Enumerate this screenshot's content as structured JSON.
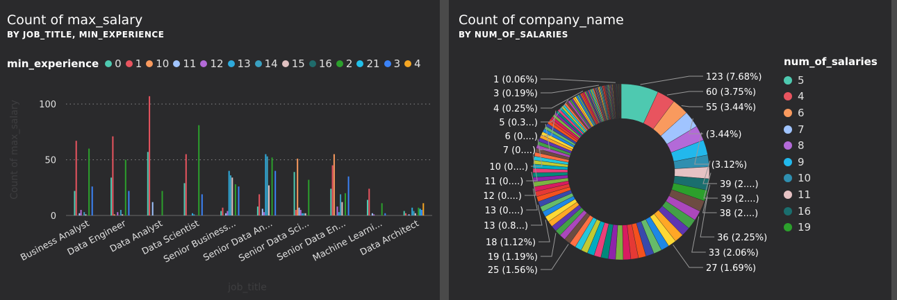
{
  "left_panel": {
    "title": "Count of max_salary",
    "subtitle": "BY JOB_TITLE, MIN_EXPERIENCE",
    "legend_title": "min_experience"
  },
  "right_panel": {
    "title": "Count of company_name",
    "subtitle": "BY NUM_OF_SALARIES",
    "legend_title": "num_of_salaries"
  },
  "chart_data": [
    {
      "type": "bar",
      "title": "Count of max_salary",
      "subtitle": "BY JOB_TITLE, MIN_EXPERIENCE",
      "xlabel": "job_title",
      "ylabel": "Count of max_salary",
      "ylim": [
        0,
        115
      ],
      "yticks": [
        0,
        50,
        100
      ],
      "grid": true,
      "legend_placement": "top",
      "categories": [
        "Business Analyst",
        "Data Engineer",
        "Data Analyst",
        "Data Scientist",
        "Senior Business...",
        "Senior Data An...",
        "Senior Data Sci...",
        "Senior Data En...",
        "Machine Learni...",
        "Data Architect"
      ],
      "series": [
        {
          "name": "0",
          "color": "#4ec9b0",
          "values": [
            22,
            34,
            57,
            29,
            4,
            8,
            39,
            24,
            14,
            4
          ]
        },
        {
          "name": "1",
          "color": "#e8545f",
          "values": [
            67,
            71,
            107,
            55,
            7,
            19,
            5,
            45,
            24,
            2
          ]
        },
        {
          "name": "10",
          "color": "#f99a5e",
          "values": [
            0,
            1,
            0,
            0,
            0,
            0,
            51,
            55,
            0,
            0
          ]
        },
        {
          "name": "11",
          "color": "#a0c4ff",
          "values": [
            2,
            0,
            12,
            0,
            2,
            6,
            7,
            0,
            2,
            1
          ]
        },
        {
          "name": "12",
          "color": "#b36ad8",
          "values": [
            5,
            3,
            0,
            0,
            4,
            3,
            5,
            8,
            1,
            0
          ]
        },
        {
          "name": "13",
          "color": "#2eaadc",
          "values": [
            0,
            0,
            0,
            2,
            40,
            55,
            2,
            3,
            0,
            7
          ]
        },
        {
          "name": "14",
          "color": "#3aa0c0",
          "values": [
            3,
            5,
            0,
            1,
            36,
            53,
            2,
            19,
            0,
            4
          ]
        },
        {
          "name": "15",
          "color": "#e0c0c0",
          "values": [
            1,
            1,
            0,
            0,
            34,
            27,
            2,
            12,
            0,
            2
          ]
        },
        {
          "name": "16",
          "color": "#1f6b6b",
          "values": [
            0,
            0,
            0,
            0,
            0,
            0,
            0,
            0,
            0,
            0
          ]
        },
        {
          "name": "2",
          "color": "#2ca02c",
          "values": [
            60,
            50,
            22,
            81,
            28,
            52,
            32,
            20,
            11,
            7
          ]
        },
        {
          "name": "21",
          "color": "#22c0ea",
          "values": [
            0,
            0,
            0,
            0,
            0,
            0,
            0,
            0,
            0,
            6
          ]
        },
        {
          "name": "3",
          "color": "#3b82f6",
          "values": [
            26,
            22,
            0,
            19,
            26,
            40,
            0,
            35,
            2,
            5
          ]
        },
        {
          "name": "4",
          "color": "#f5a623",
          "values": [
            0,
            0,
            0,
            0,
            0,
            0,
            0,
            0,
            0,
            11
          ]
        }
      ]
    },
    {
      "type": "pie",
      "donut": true,
      "title": "Count of company_name",
      "subtitle": "BY NUM_OF_SALARIES",
      "legend_placement": "right",
      "legend": [
        {
          "name": "5",
          "color": "#4ec9b0"
        },
        {
          "name": "4",
          "color": "#e8545f"
        },
        {
          "name": "6",
          "color": "#f99a5e"
        },
        {
          "name": "7",
          "color": "#a0c4ff"
        },
        {
          "name": "8",
          "color": "#b36ad8"
        },
        {
          "name": "9",
          "color": "#22b8ec"
        },
        {
          "name": "10",
          "color": "#2f8fb0"
        },
        {
          "name": "11",
          "color": "#e6c2c4"
        },
        {
          "name": "16",
          "color": "#1a6e6e"
        },
        {
          "name": "19",
          "color": "#2ca02c"
        }
      ],
      "slices": [
        123,
        60,
        55,
        55,
        50,
        50,
        39,
        39,
        38,
        36,
        36,
        33,
        33,
        30,
        30,
        27,
        27,
        27,
        27,
        25,
        25,
        25,
        25,
        24,
        24,
        23,
        23,
        22,
        22,
        21,
        21,
        20,
        20,
        19,
        19,
        19,
        18,
        18,
        18,
        17,
        17,
        16,
        16,
        15,
        15,
        14,
        14,
        13,
        13,
        13,
        13,
        12,
        12,
        12,
        11,
        11,
        11,
        10,
        10,
        10,
        9,
        9,
        9,
        8,
        8,
        8,
        8,
        7,
        7,
        7,
        7,
        7,
        6,
        6,
        6,
        6,
        6,
        5,
        5,
        5,
        5,
        5,
        5,
        4,
        4,
        4,
        4,
        4,
        4,
        4,
        4,
        3,
        3,
        3,
        3,
        3,
        3,
        3,
        3,
        3,
        3,
        2,
        2,
        2,
        2,
        2,
        2,
        2,
        2,
        2,
        2,
        2,
        2,
        2,
        2,
        1,
        1,
        1,
        1,
        1,
        1,
        1,
        1,
        1,
        1,
        1,
        1,
        1,
        1,
        1,
        1,
        1,
        1,
        1,
        1,
        1,
        1,
        1,
        1,
        1,
        1,
        1,
        1
      ],
      "data_labels": [
        {
          "text": "123 (7.68%)",
          "side": "right"
        },
        {
          "text": "60 (3.75%)",
          "side": "right"
        },
        {
          "text": "55 (3.44%)",
          "side": "right"
        },
        {
          "text": "(3.44%)",
          "side": "right"
        },
        {
          "text": "(3.12%)",
          "side": "right"
        },
        {
          "text": "39 (2....)",
          "side": "right"
        },
        {
          "text": "39 (2....)",
          "side": "right"
        },
        {
          "text": "38 (2....)",
          "side": "right"
        },
        {
          "text": "36 (2.25%)",
          "side": "right"
        },
        {
          "text": "33 (2.06%)",
          "side": "right"
        },
        {
          "text": "27 (1.69%)",
          "side": "right"
        },
        {
          "text": "25 (1.56%)",
          "side": "left"
        },
        {
          "text": "19 (1.19%)",
          "side": "left"
        },
        {
          "text": "18 (1.12%)",
          "side": "left"
        },
        {
          "text": "13 (0.8...)",
          "side": "left"
        },
        {
          "text": "13 (0....)",
          "side": "left"
        },
        {
          "text": "12 (0....)",
          "side": "left"
        },
        {
          "text": "11 (0....)",
          "side": "left"
        },
        {
          "text": "10 (0....)",
          "side": "left"
        },
        {
          "text": "7 (0....)",
          "side": "left"
        },
        {
          "text": "6 (0....)",
          "side": "left"
        },
        {
          "text": "5 (0.3...)",
          "side": "left"
        },
        {
          "text": "4 (0.25%)",
          "side": "left"
        },
        {
          "text": "3 (0.19%)",
          "side": "left"
        },
        {
          "text": "1 (0.06%)",
          "side": "left"
        }
      ]
    }
  ]
}
